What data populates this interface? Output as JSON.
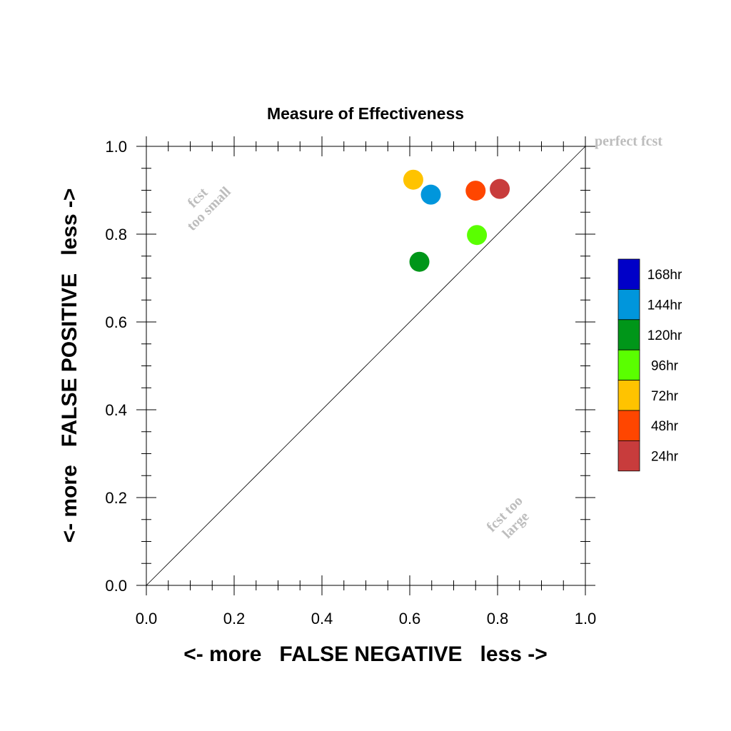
{
  "chart_data": {
    "type": "scatter",
    "title": "Measure of Effectiveness",
    "xlabel": "<- more   FALSE NEGATIVE   less ->",
    "ylabel": "<- more   FALSE POSITIVE   less ->",
    "xlim": [
      0.0,
      1.0
    ],
    "ylim": [
      0.0,
      1.0
    ],
    "x_ticks": [
      "0.0",
      "0.2",
      "0.4",
      "0.6",
      "0.8",
      "1.0"
    ],
    "y_ticks": [
      "0.0",
      "0.2",
      "0.4",
      "0.6",
      "0.8",
      "1.0"
    ],
    "grid": false,
    "diagonal_line": true,
    "annotations": {
      "perfect": "perfect fcst",
      "too_small_1": "fcst",
      "too_small_2": "too small",
      "too_large_1": "fcst too",
      "too_large_2": "large"
    },
    "legend": {
      "placement": "right",
      "entries": [
        {
          "label": "168hr",
          "color": "#0000c8"
        },
        {
          "label": "144hr",
          "color": "#0096dc"
        },
        {
          "label": "120hr",
          "color": "#009619"
        },
        {
          "label": "96hr",
          "color": "#5aff00"
        },
        {
          "label": "72hr",
          "color": "#ffc300"
        },
        {
          "label": "48hr",
          "color": "#ff4600"
        },
        {
          "label": "24hr",
          "color": "#c83c3c"
        }
      ]
    },
    "points": [
      {
        "label": "24hr",
        "x": 0.805,
        "y": 0.903,
        "color": "#c83c3c"
      },
      {
        "label": "48hr",
        "x": 0.75,
        "y": 0.899,
        "color": "#ff4600"
      },
      {
        "label": "72hr",
        "x": 0.608,
        "y": 0.924,
        "color": "#ffc300"
      },
      {
        "label": "96hr",
        "x": 0.753,
        "y": 0.798,
        "color": "#5aff00"
      },
      {
        "label": "120hr",
        "x": 0.622,
        "y": 0.737,
        "color": "#009619"
      },
      {
        "label": "144hr",
        "x": 0.648,
        "y": 0.89,
        "color": "#0096dc"
      }
    ]
  }
}
